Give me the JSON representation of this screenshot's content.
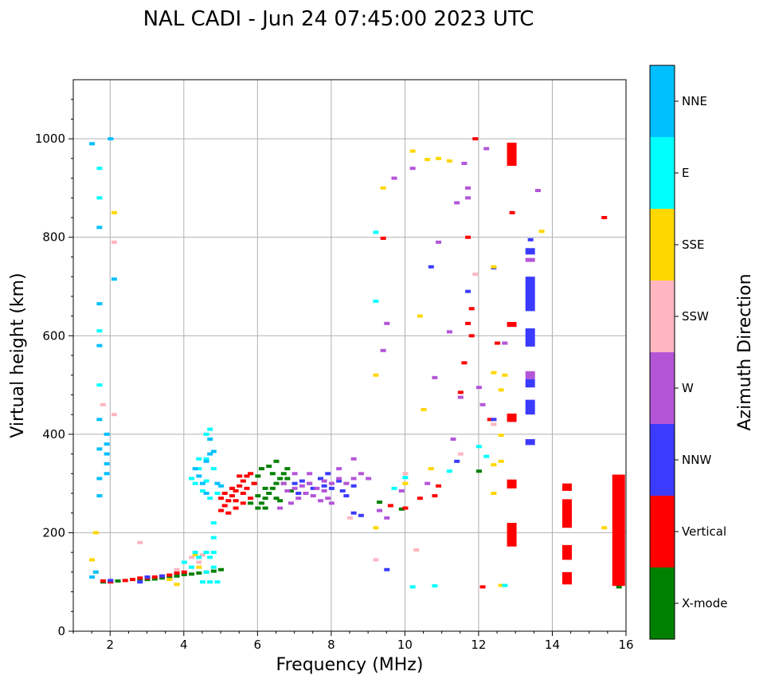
{
  "chart_data": {
    "type": "scatter",
    "title": "NAL CADI - Jun 24 07:45:00 2023 UTC",
    "xlabel": "Frequency (MHz)",
    "ylabel": "Virtual height (km)",
    "xlim": [
      1,
      16
    ],
    "ylim": [
      0,
      1120
    ],
    "xticks": [
      2,
      4,
      6,
      8,
      10,
      12,
      14,
      16
    ],
    "yticks": [
      0,
      200,
      400,
      600,
      800,
      1000
    ],
    "grid": true,
    "colorbar": {
      "title": "Azimuth Direction",
      "categories": [
        {
          "label": "X-mode",
          "color": "#008000"
        },
        {
          "label": "Vertical",
          "color": "#ff0000"
        },
        {
          "label": "NNW",
          "color": "#3b3bff"
        },
        {
          "label": "W",
          "color": "#b455d8"
        },
        {
          "label": "SSW",
          "color": "#ffb6c1"
        },
        {
          "label": "SSE",
          "color": "#ffd700"
        },
        {
          "label": "E",
          "color": "#00ffff"
        },
        {
          "label": "NNE",
          "color": "#00bfff"
        }
      ]
    },
    "series": [
      {
        "name": "X-mode",
        "points": [
          [
            5.0,
            125
          ],
          [
            4.8,
            122
          ],
          [
            4.6,
            120
          ],
          [
            4.4,
            118
          ],
          [
            4.2,
            116
          ],
          [
            4.0,
            115
          ],
          [
            3.8,
            112
          ],
          [
            3.6,
            110
          ],
          [
            3.4,
            108
          ],
          [
            3.2,
            106
          ],
          [
            3.0,
            105
          ],
          [
            2.8,
            104
          ],
          [
            2.2,
            102
          ],
          [
            2.0,
            101
          ],
          [
            1.8,
            100
          ],
          [
            6.0,
            250
          ],
          [
            6.1,
            260
          ],
          [
            6.2,
            270
          ],
          [
            6.3,
            280
          ],
          [
            6.4,
            290
          ],
          [
            6.5,
            300
          ],
          [
            6.6,
            310
          ],
          [
            6.7,
            320
          ],
          [
            6.8,
            330
          ],
          [
            6.5,
            345
          ],
          [
            6.3,
            335
          ],
          [
            6.0,
            315
          ],
          [
            5.9,
            300
          ],
          [
            6.2,
            250
          ],
          [
            6.6,
            265
          ],
          [
            6.9,
            285
          ],
          [
            6.7,
            300
          ],
          [
            6.1,
            330
          ],
          [
            6.4,
            320
          ],
          [
            6.8,
            310
          ],
          [
            6.2,
            290
          ],
          [
            6.0,
            275
          ],
          [
            5.8,
            260
          ],
          [
            6.5,
            270
          ],
          [
            9.3,
            262
          ],
          [
            9.9,
            248
          ],
          [
            12.0,
            325
          ],
          [
            15.8,
            90
          ]
        ]
      },
      {
        "name": "Vertical",
        "points": [
          [
            5.0,
            245
          ],
          [
            5.1,
            255
          ],
          [
            5.2,
            265
          ],
          [
            5.3,
            275
          ],
          [
            5.4,
            285
          ],
          [
            5.5,
            295
          ],
          [
            5.6,
            305
          ],
          [
            5.7,
            315
          ],
          [
            5.8,
            320
          ],
          [
            5.2,
            240
          ],
          [
            5.4,
            250
          ],
          [
            5.6,
            260
          ],
          [
            5.8,
            270
          ],
          [
            5.0,
            270
          ],
          [
            5.3,
            290
          ],
          [
            5.5,
            315
          ],
          [
            5.7,
            290
          ],
          [
            5.9,
            300
          ],
          [
            5.1,
            280
          ],
          [
            5.6,
            280
          ],
          [
            5.4,
            265
          ],
          [
            2.4,
            103
          ],
          [
            2.6,
            105
          ],
          [
            2.8,
            108
          ],
          [
            3.0,
            108
          ],
          [
            3.2,
            110
          ],
          [
            3.4,
            112
          ],
          [
            3.6,
            114
          ],
          [
            3.8,
            118
          ],
          [
            4.0,
            120
          ],
          [
            1.8,
            102
          ],
          [
            2.0,
            100
          ],
          [
            9.6,
            255
          ],
          [
            10.0,
            250
          ],
          [
            10.4,
            270
          ],
          [
            10.8,
            275
          ],
          [
            11.8,
            600
          ],
          [
            12.1,
            90
          ],
          [
            11.6,
            545
          ],
          [
            11.7,
            800
          ],
          [
            11.8,
            655
          ],
          [
            11.7,
            625
          ],
          [
            11.9,
            1000
          ],
          [
            12.3,
            430
          ],
          [
            12.5,
            585
          ],
          [
            10.9,
            295
          ],
          [
            11.5,
            485
          ],
          [
            12.9,
            850
          ],
          [
            9.4,
            798
          ],
          [
            15.4,
            840
          ]
        ]
      },
      {
        "name": "NNW",
        "points": [
          [
            7.0,
            300
          ],
          [
            7.2,
            305
          ],
          [
            7.5,
            290
          ],
          [
            7.8,
            295
          ],
          [
            8.0,
            290
          ],
          [
            8.3,
            285
          ],
          [
            8.6,
            295
          ],
          [
            8.4,
            275
          ],
          [
            7.4,
            300
          ],
          [
            7.1,
            280
          ],
          [
            7.7,
            310
          ],
          [
            7.9,
            320
          ],
          [
            8.2,
            305
          ],
          [
            8.6,
            240
          ],
          [
            8.8,
            235
          ],
          [
            2.0,
            103
          ],
          [
            2.8,
            100
          ],
          [
            3.0,
            110
          ],
          [
            3.4,
            112
          ],
          [
            9.5,
            125
          ],
          [
            10.7,
            740
          ],
          [
            11.4,
            345
          ],
          [
            11.7,
            690
          ],
          [
            13.4,
            795
          ],
          [
            12.4,
            738
          ],
          [
            12.4,
            430
          ]
        ]
      },
      {
        "name": "W",
        "points": [
          [
            6.8,
            285
          ],
          [
            7.0,
            290
          ],
          [
            7.2,
            295
          ],
          [
            7.4,
            300
          ],
          [
            7.6,
            290
          ],
          [
            7.8,
            285
          ],
          [
            8.0,
            300
          ],
          [
            8.2,
            310
          ],
          [
            8.4,
            300
          ],
          [
            8.6,
            310
          ],
          [
            8.8,
            320
          ],
          [
            9.0,
            310
          ],
          [
            6.9,
            260
          ],
          [
            7.1,
            270
          ],
          [
            7.3,
            280
          ],
          [
            7.5,
            275
          ],
          [
            7.7,
            265
          ],
          [
            7.9,
            270
          ],
          [
            6.7,
            300
          ],
          [
            6.6,
            250
          ],
          [
            7.0,
            320
          ],
          [
            7.4,
            320
          ],
          [
            7.8,
            305
          ],
          [
            8.6,
            350
          ],
          [
            8.2,
            330
          ],
          [
            8.0,
            260
          ],
          [
            9.3,
            245
          ],
          [
            9.5,
            230
          ],
          [
            9.7,
            920
          ],
          [
            10.2,
            940
          ],
          [
            10.8,
            515
          ],
          [
            10.9,
            790
          ],
          [
            11.2,
            608
          ],
          [
            11.3,
            390
          ],
          [
            11.4,
            870
          ],
          [
            11.5,
            475
          ],
          [
            11.6,
            950
          ],
          [
            11.7,
            900
          ],
          [
            12.0,
            495
          ],
          [
            12.1,
            460
          ],
          [
            12.2,
            980
          ],
          [
            12.7,
            585
          ],
          [
            13.6,
            895
          ],
          [
            9.4,
            570
          ],
          [
            9.5,
            625
          ],
          [
            10.6,
            300
          ],
          [
            11.7,
            880
          ],
          [
            9.9,
            285
          ]
        ]
      },
      {
        "name": "SSW",
        "points": [
          [
            4.2,
            150
          ],
          [
            4.4,
            140
          ],
          [
            4.5,
            155
          ],
          [
            3.8,
            125
          ],
          [
            9.2,
            145
          ],
          [
            10.3,
            165
          ],
          [
            8.5,
            230
          ],
          [
            10.0,
            320
          ],
          [
            11.9,
            725
          ],
          [
            12.4,
            420
          ],
          [
            11.5,
            360
          ],
          [
            2.8,
            180
          ],
          [
            2.1,
            790
          ],
          [
            2.1,
            440
          ],
          [
            1.8,
            460
          ]
        ]
      },
      {
        "name": "SSE",
        "points": [
          [
            1.6,
            200
          ],
          [
            1.6,
            120
          ],
          [
            1.5,
            145
          ],
          [
            4.3,
            155
          ],
          [
            4.4,
            130
          ],
          [
            3.6,
            105
          ],
          [
            3.8,
            95
          ],
          [
            9.2,
            520
          ],
          [
            9.4,
            900
          ],
          [
            10.2,
            975
          ],
          [
            10.4,
            640
          ],
          [
            10.5,
            450
          ],
          [
            10.6,
            958
          ],
          [
            10.9,
            960
          ],
          [
            11.2,
            955
          ],
          [
            10.7,
            330
          ],
          [
            10.0,
            300
          ],
          [
            12.4,
            525
          ],
          [
            12.4,
            280
          ],
          [
            12.4,
            338
          ],
          [
            12.6,
            490
          ],
          [
            12.6,
            398
          ],
          [
            12.7,
            520
          ],
          [
            12.6,
            93
          ],
          [
            13.7,
            812
          ],
          [
            12.4,
            740
          ],
          [
            12.6,
            345
          ],
          [
            15.4,
            210
          ],
          [
            2.1,
            850
          ],
          [
            9.2,
            210
          ]
        ]
      },
      {
        "name": "E",
        "points": [
          [
            4.8,
            220
          ],
          [
            4.8,
            190
          ],
          [
            4.8,
            160
          ],
          [
            4.8,
            130
          ],
          [
            4.7,
            100
          ],
          [
            4.9,
            100
          ],
          [
            4.7,
            150
          ],
          [
            4.6,
            120
          ],
          [
            4.5,
            100
          ],
          [
            4.2,
            130
          ],
          [
            4.0,
            140
          ],
          [
            4.4,
            150
          ],
          [
            4.6,
            160
          ],
          [
            4.3,
            160
          ],
          [
            4.2,
            310
          ],
          [
            4.4,
            330
          ],
          [
            4.6,
            350
          ],
          [
            4.8,
            330
          ],
          [
            4.6,
            305
          ],
          [
            4.5,
            285
          ],
          [
            4.9,
            280
          ],
          [
            4.7,
            270
          ],
          [
            4.3,
            300
          ],
          [
            4.4,
            350
          ],
          [
            4.6,
            400
          ],
          [
            4.7,
            410
          ],
          [
            9.2,
            810
          ],
          [
            9.2,
            670
          ],
          [
            9.7,
            290
          ],
          [
            10.0,
            312
          ],
          [
            10.2,
            90
          ],
          [
            10.8,
            92
          ],
          [
            12.0,
            375
          ],
          [
            12.2,
            355
          ],
          [
            12.7,
            93
          ],
          [
            11.2,
            325
          ],
          [
            1.7,
            940
          ],
          [
            1.7,
            880
          ],
          [
            1.7,
            610
          ],
          [
            1.7,
            500
          ]
        ]
      },
      {
        "name": "NNE",
        "points": [
          [
            1.5,
            990
          ],
          [
            1.7,
            820
          ],
          [
            1.7,
            665
          ],
          [
            1.7,
            580
          ],
          [
            1.7,
            430
          ],
          [
            1.7,
            370
          ],
          [
            1.7,
            310
          ],
          [
            1.7,
            275
          ],
          [
            1.9,
            380
          ],
          [
            1.9,
            340
          ],
          [
            1.9,
            320
          ],
          [
            1.9,
            360
          ],
          [
            1.9,
            400
          ],
          [
            2.1,
            715
          ],
          [
            2.0,
            1000
          ],
          [
            4.6,
            345
          ],
          [
            4.7,
            360
          ],
          [
            4.8,
            365
          ],
          [
            4.4,
            315
          ],
          [
            4.3,
            330
          ],
          [
            4.9,
            300
          ],
          [
            4.5,
            300
          ],
          [
            4.6,
            280
          ],
          [
            5.0,
            295
          ],
          [
            4.7,
            390
          ],
          [
            1.5,
            110
          ],
          [
            1.6,
            120
          ]
        ]
      }
    ],
    "bars": [
      {
        "name": "Vertical",
        "x": 12.9,
        "y0": 945,
        "y1": 992
      },
      {
        "name": "Vertical",
        "x": 12.9,
        "y0": 618,
        "y1": 628
      },
      {
        "name": "Vertical",
        "x": 12.9,
        "y0": 425,
        "y1": 442
      },
      {
        "name": "Vertical",
        "x": 12.9,
        "y0": 290,
        "y1": 308
      },
      {
        "name": "Vertical",
        "x": 12.9,
        "y0": 172,
        "y1": 220
      },
      {
        "name": "NNW",
        "x": 13.4,
        "y0": 650,
        "y1": 720
      },
      {
        "name": "NNW",
        "x": 13.4,
        "y0": 578,
        "y1": 615
      },
      {
        "name": "NNW",
        "x": 13.4,
        "y0": 440,
        "y1": 470
      },
      {
        "name": "NNW",
        "x": 13.4,
        "y0": 495,
        "y1": 512
      },
      {
        "name": "NNW",
        "x": 13.4,
        "y0": 378,
        "y1": 390
      },
      {
        "name": "NNW",
        "x": 13.4,
        "y0": 765,
        "y1": 778
      },
      {
        "name": "W",
        "x": 13.4,
        "y0": 750,
        "y1": 758
      },
      {
        "name": "W",
        "x": 13.4,
        "y0": 512,
        "y1": 528
      },
      {
        "name": "Vertical",
        "x": 14.4,
        "y0": 285,
        "y1": 300
      },
      {
        "name": "Vertical",
        "x": 14.4,
        "y0": 210,
        "y1": 268
      },
      {
        "name": "Vertical",
        "x": 14.4,
        "y0": 145,
        "y1": 175
      },
      {
        "name": "Vertical",
        "x": 14.4,
        "y0": 95,
        "y1": 120
      },
      {
        "name": "Vertical",
        "x": 15.8,
        "y0": 92,
        "y1": 318
      }
    ]
  }
}
